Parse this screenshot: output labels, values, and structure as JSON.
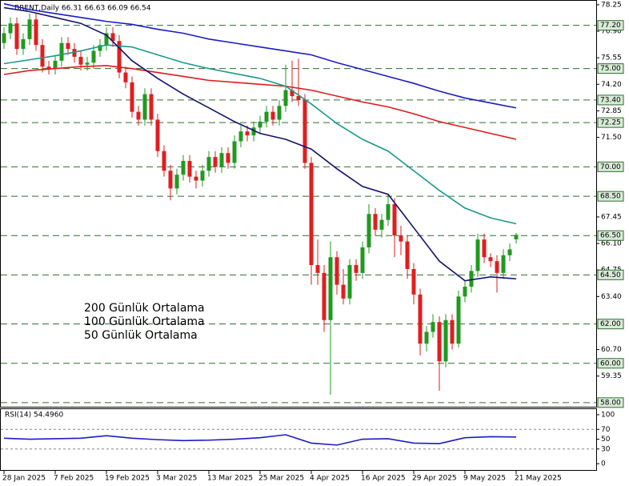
{
  "chart_data": [
    {
      "type": "candlestick",
      "title": "BRENT,Daily  66.31 66.63 66.09 66.54",
      "categories": [
        "28 Jan 2025",
        null,
        null,
        null,
        null,
        null,
        null,
        null,
        "7 Feb 2025",
        null,
        null,
        null,
        null,
        null,
        null,
        null,
        "19 Feb 2025",
        null,
        null,
        null,
        null,
        null,
        null,
        null,
        "3 Mar 2025",
        null,
        null,
        null,
        null,
        null,
        null,
        null,
        "13 Mar 2025",
        null,
        null,
        null,
        null,
        null,
        null,
        null,
        "25 Mar 2025",
        null,
        null,
        null,
        null,
        null,
        null,
        null,
        "4 Apr 2025",
        null,
        null,
        null,
        null,
        null,
        null,
        null,
        "16 Apr 2025",
        null,
        null,
        null,
        null,
        null,
        null,
        null,
        "29 Apr 2025",
        null,
        null,
        null,
        null,
        null,
        null,
        null,
        "9 May 2025",
        null,
        null,
        null,
        null,
        null,
        null,
        null,
        "21 May 2025"
      ],
      "open": [
        76.3,
        76.8,
        77.3,
        76.0,
        76.5,
        77.5,
        76.2,
        75.1,
        75.0,
        75.4,
        76.3,
        76.0,
        75.6,
        75.2,
        75.3,
        75.9,
        76.2,
        76.8,
        76.4,
        74.8,
        74.3,
        72.8,
        72.4,
        73.7,
        72.4,
        70.8,
        69.8,
        68.9,
        69.6,
        70.3,
        69.5,
        69.3,
        69.8,
        70.5,
        70.0,
        70.7,
        70.2,
        71.3,
        71.8,
        71.6,
        72.0,
        72.3,
        72.8,
        72.4,
        73.1,
        73.9,
        73.6,
        73.4,
        70.2,
        65.0,
        64.6,
        62.2,
        65.4,
        64.0,
        63.3,
        65.0,
        64.6,
        65.9,
        67.6,
        66.8,
        67.3,
        68.1,
        66.5,
        66.2,
        64.8,
        63.5,
        61.0,
        61.6,
        62.1,
        60.1,
        62.2,
        61.0,
        63.4,
        63.9,
        64.7,
        66.3,
        65.4,
        65.2,
        64.6,
        65.5,
        66.31
      ],
      "high": [
        77.1,
        77.6,
        77.6,
        76.8,
        77.8,
        77.8,
        76.5,
        75.4,
        75.7,
        76.6,
        76.6,
        76.3,
        75.9,
        75.6,
        76.2,
        76.5,
        77.1,
        77.1,
        76.7,
        75.1,
        74.6,
        73.1,
        74.0,
        74.0,
        72.7,
        71.1,
        70.1,
        69.9,
        70.6,
        70.6,
        69.8,
        70.1,
        70.8,
        70.8,
        71.0,
        71.0,
        71.6,
        72.1,
        72.1,
        72.3,
        72.6,
        73.1,
        73.1,
        73.4,
        75.2,
        75.4,
        75.5,
        73.7,
        70.5,
        66.3,
        65.0,
        66.2,
        65.7,
        64.8,
        65.3,
        65.3,
        66.2,
        68.1,
        67.9,
        67.6,
        68.6,
        68.4,
        67.0,
        66.5,
        65.1,
        63.8,
        61.9,
        62.5,
        62.4,
        62.5,
        62.5,
        63.7,
        64.2,
        65.0,
        66.6,
        66.6,
        65.6,
        65.5,
        65.8,
        66.1,
        66.63
      ],
      "low": [
        76.0,
        76.5,
        75.7,
        75.7,
        76.2,
        75.9,
        74.8,
        74.7,
        74.7,
        75.1,
        75.7,
        75.3,
        74.9,
        74.9,
        75.0,
        75.6,
        75.9,
        76.1,
        74.5,
        74.0,
        72.5,
        72.1,
        72.1,
        72.1,
        70.5,
        69.5,
        68.3,
        68.6,
        69.3,
        69.2,
        68.9,
        69.0,
        69.5,
        69.7,
        69.7,
        69.9,
        69.9,
        71.0,
        71.3,
        71.3,
        71.7,
        72.0,
        72.1,
        72.1,
        72.8,
        73.3,
        73.1,
        69.9,
        64.0,
        64.0,
        61.6,
        58.4,
        63.5,
        63.0,
        63.0,
        64.2,
        64.3,
        65.6,
        66.5,
        66.4,
        67.0,
        65.4,
        65.5,
        64.3,
        63.0,
        60.4,
        60.6,
        61.3,
        58.6,
        59.8,
        60.7,
        60.8,
        63.1,
        63.6,
        64.4,
        65.1,
        64.9,
        63.6,
        64.3,
        65.2,
        66.09
      ],
      "close": [
        76.8,
        77.3,
        76.0,
        76.5,
        77.5,
        76.2,
        75.1,
        75.0,
        75.4,
        76.3,
        76.0,
        75.6,
        75.2,
        75.3,
        75.9,
        76.2,
        76.8,
        76.4,
        74.8,
        74.3,
        72.8,
        72.4,
        73.7,
        72.4,
        70.8,
        69.8,
        68.9,
        69.6,
        70.3,
        69.5,
        69.3,
        69.8,
        70.5,
        70.0,
        70.7,
        70.2,
        71.3,
        71.8,
        71.6,
        72.0,
        72.3,
        72.8,
        72.4,
        73.1,
        73.9,
        73.6,
        73.4,
        70.2,
        65.0,
        64.6,
        62.2,
        65.4,
        64.0,
        63.3,
        65.0,
        64.6,
        65.9,
        67.6,
        66.8,
        67.3,
        68.1,
        66.5,
        66.2,
        64.8,
        63.5,
        61.0,
        61.6,
        62.1,
        60.1,
        62.2,
        61.0,
        63.4,
        63.9,
        64.7,
        66.3,
        65.4,
        65.2,
        64.6,
        65.5,
        65.8,
        66.54
      ],
      "up_color": "#1f9a1f",
      "down_color": "#e01e1e",
      "series": [
        {
          "name": "200 Günlük Ortalama",
          "color": "#1c1cc4",
          "x": [
            0,
            4,
            8,
            12,
            16,
            20,
            24,
            28,
            32,
            36,
            40,
            44,
            48,
            52,
            56,
            60,
            64,
            68,
            72,
            76,
            80
          ],
          "values": [
            78.3,
            78.0,
            77.8,
            77.6,
            77.4,
            77.25,
            77.0,
            76.8,
            76.5,
            76.3,
            76.1,
            75.9,
            75.7,
            75.3,
            74.95,
            74.6,
            74.25,
            73.85,
            73.5,
            73.25,
            73.0
          ]
        },
        {
          "name": "100 Günlük Ortalama",
          "color": "#e01b1b",
          "x": [
            0,
            4,
            8,
            12,
            16,
            20,
            24,
            28,
            32,
            36,
            40,
            44,
            48,
            52,
            56,
            60,
            64,
            68,
            72,
            76,
            80
          ],
          "values": [
            74.7,
            74.9,
            75.0,
            75.1,
            75.15,
            75.0,
            74.8,
            74.6,
            74.4,
            74.3,
            74.2,
            74.1,
            73.9,
            73.6,
            73.3,
            73.05,
            72.7,
            72.3,
            72.0,
            71.7,
            71.4
          ]
        },
        {
          "name": "50 Günlük Ortalama",
          "color": "#1a9a8c",
          "x": [
            0,
            4,
            8,
            12,
            16,
            20,
            24,
            28,
            32,
            36,
            40,
            44,
            48,
            52,
            56,
            60,
            64,
            68,
            72,
            76,
            80
          ],
          "values": [
            75.25,
            75.45,
            75.65,
            75.9,
            76.2,
            76.1,
            75.7,
            75.3,
            75.0,
            74.75,
            74.5,
            74.1,
            73.2,
            72.2,
            71.4,
            70.8,
            69.8,
            68.8,
            67.9,
            67.4,
            67.1
          ]
        },
        {
          "color": "#12126e",
          "x": [
            0,
            4,
            8,
            12,
            16,
            20,
            24,
            28,
            32,
            36,
            40,
            44,
            48,
            52,
            56,
            60,
            64,
            68,
            72,
            76,
            80
          ],
          "values": [
            78.1,
            77.9,
            77.6,
            77.3,
            76.7,
            75.4,
            74.5,
            73.7,
            73.0,
            72.3,
            71.7,
            71.4,
            70.9,
            69.9,
            69.0,
            68.6,
            66.9,
            65.2,
            64.2,
            64.4,
            64.3
          ]
        }
      ],
      "ylim": [
        57.79,
        78.49
      ],
      "yticks": [
        {
          "value": 78.25,
          "label": "78.25"
        },
        {
          "value": 76.9,
          "label": "76.90"
        },
        {
          "value": 75.55,
          "label": "75.55"
        },
        {
          "value": 74.2,
          "label": "74.20"
        },
        {
          "value": 72.85,
          "label": "72.85"
        },
        {
          "value": 71.5,
          "label": "71.50"
        },
        {
          "value": 67.45,
          "label": "67.45"
        },
        {
          "value": 66.1,
          "label": "66.10"
        },
        {
          "value": 64.75,
          "label": "64.75"
        },
        {
          "value": 63.4,
          "label": "63.40"
        },
        {
          "value": 60.7,
          "label": "60.70"
        },
        {
          "value": 59.35,
          "label": "59.35"
        }
      ],
      "levels": [
        {
          "value": 77.2,
          "label": "77.20"
        },
        {
          "value": 75.0,
          "label": "75.00"
        },
        {
          "value": 73.4,
          "label": "73.40"
        },
        {
          "value": 72.25,
          "label": "72.25"
        },
        {
          "value": 70.0,
          "label": "70.00"
        },
        {
          "value": 68.5,
          "label": "68.50"
        },
        {
          "value": 66.5,
          "label": "66.50"
        },
        {
          "value": 64.5,
          "label": "64.50"
        },
        {
          "value": 62.0,
          "label": "62.00"
        },
        {
          "value": 60.0,
          "label": "60.00"
        },
        {
          "value": 58.0,
          "label": "58.00"
        }
      ],
      "level_color": "#2d6e2d"
    },
    {
      "type": "line",
      "title": "RSI(14) 54.4960",
      "color": "#1c1cc4",
      "x": [
        0,
        4,
        8,
        12,
        16,
        20,
        24,
        28,
        32,
        36,
        40,
        44,
        48,
        52,
        56,
        60,
        64,
        68,
        72,
        76,
        80
      ],
      "values": [
        52,
        50,
        51,
        52,
        57,
        52,
        49,
        47,
        48,
        50,
        53,
        59,
        42,
        38,
        50,
        51,
        42,
        41,
        53,
        55,
        54.496
      ],
      "ylim": [
        -14.5,
        111.3
      ],
      "yticks": [
        0,
        30,
        50,
        70,
        100
      ],
      "dashed_levels": [
        30,
        70
      ]
    }
  ]
}
